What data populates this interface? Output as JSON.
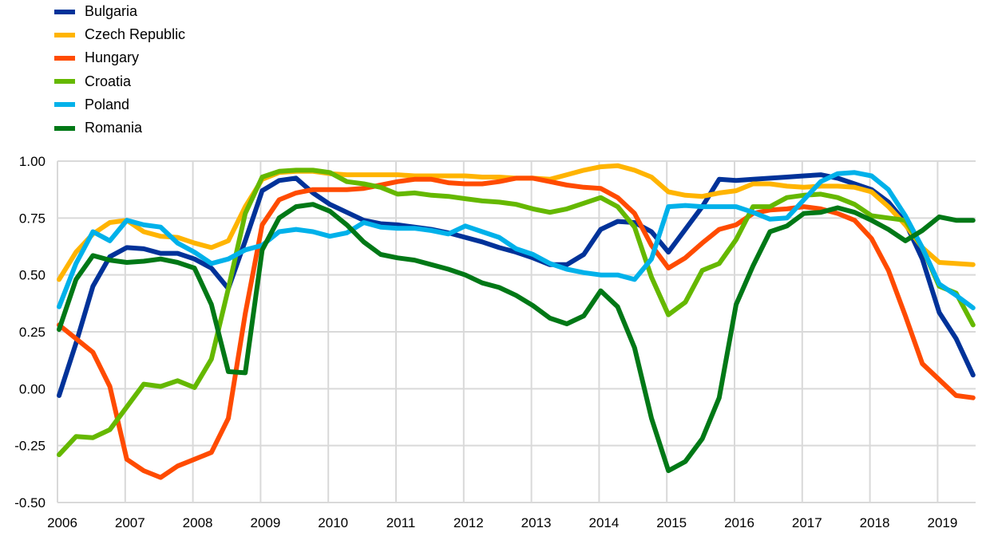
{
  "chart_data": {
    "type": "line",
    "title": "",
    "xlabel": "",
    "ylabel": "",
    "frequency": "quarterly",
    "start": "2006Q1",
    "ylim": [
      -0.5,
      1.0
    ],
    "yticks": [
      "1.00",
      "0.75",
      "0.50",
      "0.25",
      "0.00",
      "-0.25",
      "-0.50"
    ],
    "ytick_values": [
      1.0,
      0.75,
      0.5,
      0.25,
      0.0,
      -0.25,
      -0.5
    ],
    "xticks": [
      "2006",
      "2007",
      "2008",
      "2009",
      "2010",
      "2011",
      "2012",
      "2013",
      "2014",
      "2015",
      "2016",
      "2017",
      "2018",
      "2019"
    ],
    "grid": true,
    "legend_position": "top-left",
    "series": [
      {
        "name": "Bulgaria",
        "color": "#003299",
        "values": [
          -0.03,
          0.2,
          0.45,
          0.58,
          0.62,
          0.615,
          0.595,
          0.595,
          0.57,
          0.53,
          0.44,
          0.65,
          0.87,
          0.915,
          0.925,
          0.86,
          0.81,
          0.775,
          0.74,
          0.725,
          0.72,
          0.71,
          0.7,
          0.685,
          0.665,
          0.645,
          0.62,
          0.6,
          0.575,
          0.545,
          0.545,
          0.59,
          0.7,
          0.735,
          0.73,
          0.69,
          0.6,
          0.7,
          0.8,
          0.92,
          0.915,
          0.92,
          0.925,
          0.93,
          0.935,
          0.94,
          0.925,
          0.9,
          0.875,
          0.82,
          0.73,
          0.57,
          0.335,
          0.22,
          0.06
        ]
      },
      {
        "name": "Czech Republic",
        "color": "#FFB400",
        "values": [
          0.48,
          0.6,
          0.68,
          0.73,
          0.74,
          0.69,
          0.67,
          0.665,
          0.64,
          0.62,
          0.65,
          0.8,
          0.92,
          0.95,
          0.955,
          0.955,
          0.945,
          0.94,
          0.94,
          0.94,
          0.94,
          0.935,
          0.935,
          0.935,
          0.935,
          0.93,
          0.93,
          0.925,
          0.925,
          0.92,
          0.94,
          0.96,
          0.975,
          0.98,
          0.96,
          0.93,
          0.865,
          0.85,
          0.845,
          0.86,
          0.87,
          0.9,
          0.9,
          0.89,
          0.885,
          0.89,
          0.89,
          0.885,
          0.865,
          0.8,
          0.72,
          0.62,
          0.555,
          0.55,
          0.545
        ]
      },
      {
        "name": "Hungary",
        "color": "#FF4B00",
        "values": [
          0.28,
          0.22,
          0.16,
          0.01,
          -0.31,
          -0.36,
          -0.39,
          -0.34,
          -0.31,
          -0.28,
          -0.13,
          0.33,
          0.72,
          0.83,
          0.86,
          0.875,
          0.875,
          0.875,
          0.88,
          0.895,
          0.91,
          0.92,
          0.92,
          0.905,
          0.9,
          0.9,
          0.91,
          0.925,
          0.925,
          0.91,
          0.895,
          0.885,
          0.88,
          0.84,
          0.77,
          0.63,
          0.53,
          0.575,
          0.64,
          0.7,
          0.72,
          0.77,
          0.785,
          0.79,
          0.8,
          0.79,
          0.77,
          0.74,
          0.66,
          0.52,
          0.32,
          0.11,
          0.04,
          -0.03,
          -0.04
        ]
      },
      {
        "name": "Croatia",
        "color": "#65B800",
        "values": [
          -0.29,
          -0.21,
          -0.215,
          -0.18,
          -0.08,
          0.02,
          0.01,
          0.035,
          0.005,
          0.13,
          0.44,
          0.77,
          0.93,
          0.955,
          0.96,
          0.96,
          0.95,
          0.91,
          0.9,
          0.885,
          0.855,
          0.86,
          0.85,
          0.845,
          0.835,
          0.825,
          0.82,
          0.81,
          0.79,
          0.775,
          0.79,
          0.815,
          0.84,
          0.8,
          0.71,
          0.49,
          0.325,
          0.38,
          0.52,
          0.55,
          0.655,
          0.8,
          0.8,
          0.84,
          0.85,
          0.855,
          0.84,
          0.81,
          0.76,
          0.75,
          0.74,
          0.62,
          0.45,
          0.42,
          0.28
        ]
      },
      {
        "name": "Poland",
        "color": "#00B1EA",
        "values": [
          0.36,
          0.55,
          0.69,
          0.65,
          0.74,
          0.72,
          0.71,
          0.64,
          0.6,
          0.55,
          0.57,
          0.61,
          0.63,
          0.69,
          0.7,
          0.69,
          0.67,
          0.685,
          0.73,
          0.71,
          0.705,
          0.705,
          0.695,
          0.68,
          0.715,
          0.69,
          0.665,
          0.615,
          0.59,
          0.55,
          0.525,
          0.51,
          0.5,
          0.5,
          0.48,
          0.57,
          0.8,
          0.805,
          0.8,
          0.8,
          0.8,
          0.775,
          0.745,
          0.75,
          0.83,
          0.91,
          0.945,
          0.95,
          0.935,
          0.875,
          0.76,
          0.62,
          0.46,
          0.41,
          0.355
        ]
      },
      {
        "name": "Romania",
        "color": "#007816",
        "values": [
          0.26,
          0.48,
          0.585,
          0.565,
          0.555,
          0.56,
          0.57,
          0.555,
          0.53,
          0.37,
          0.075,
          0.07,
          0.61,
          0.75,
          0.8,
          0.81,
          0.78,
          0.72,
          0.645,
          0.59,
          0.575,
          0.565,
          0.545,
          0.525,
          0.5,
          0.465,
          0.445,
          0.41,
          0.365,
          0.31,
          0.285,
          0.32,
          0.43,
          0.36,
          0.18,
          -0.13,
          -0.36,
          -0.32,
          -0.22,
          -0.04,
          0.37,
          0.54,
          0.69,
          0.715,
          0.77,
          0.775,
          0.795,
          0.775,
          0.74,
          0.7,
          0.65,
          0.695,
          0.755,
          0.74,
          0.74
        ]
      }
    ]
  }
}
